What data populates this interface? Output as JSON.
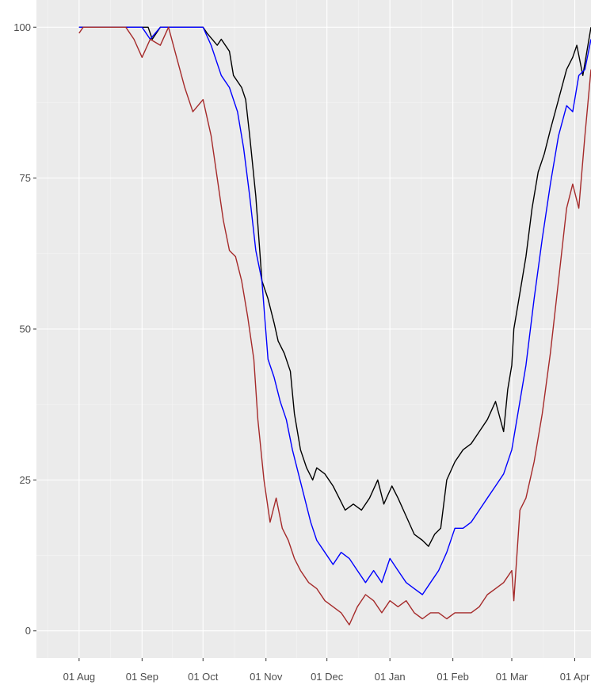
{
  "chart_data": {
    "type": "line",
    "title": "",
    "xlabel": "",
    "ylabel": "",
    "grid": true,
    "background_color": "#ebebeb",
    "grid_major_color": "#ffffff",
    "grid_minor_color": "#f5f5f5",
    "xlim": [
      "2019-07-11",
      "2020-04-09"
    ],
    "ylim": [
      -4.5,
      104.5
    ],
    "x_ticks": [
      {
        "date": "2019-08-01",
        "label": "01 Aug"
      },
      {
        "date": "2019-09-01",
        "label": "01 Sep"
      },
      {
        "date": "2019-10-01",
        "label": "01 Oct"
      },
      {
        "date": "2019-11-01",
        "label": "01 Nov"
      },
      {
        "date": "2019-12-01",
        "label": "01 Dec"
      },
      {
        "date": "2020-01-01",
        "label": "01 Jan"
      },
      {
        "date": "2020-02-01",
        "label": "01 Feb"
      },
      {
        "date": "2020-03-01",
        "label": "01 Mar"
      },
      {
        "date": "2020-04-01",
        "label": "01 Apr"
      }
    ],
    "y_ticks": [
      0,
      25,
      50,
      75,
      100
    ],
    "series": [
      {
        "color": "#000000",
        "x": [
          "2019-08-01",
          "2019-09-04",
          "2019-09-06",
          "2019-09-10",
          "2019-09-15",
          "2019-10-01",
          "2019-10-03",
          "2019-10-08",
          "2019-10-10",
          "2019-10-14",
          "2019-10-16",
          "2019-10-20",
          "2019-10-22",
          "2019-10-24",
          "2019-10-27",
          "2019-10-30",
          "2019-11-02",
          "2019-11-05",
          "2019-11-07",
          "2019-11-10",
          "2019-11-13",
          "2019-11-15",
          "2019-11-18",
          "2019-11-21",
          "2019-11-24",
          "2019-11-26",
          "2019-11-30",
          "2019-12-04",
          "2019-12-07",
          "2019-12-10",
          "2019-12-14",
          "2019-12-18",
          "2019-12-22",
          "2019-12-26",
          "2019-12-29",
          "2020-01-02",
          "2020-01-05",
          "2020-01-09",
          "2020-01-13",
          "2020-01-17",
          "2020-01-20",
          "2020-01-23",
          "2020-01-26",
          "2020-01-29",
          "2020-02-02",
          "2020-02-06",
          "2020-02-10",
          "2020-02-14",
          "2020-02-18",
          "2020-02-22",
          "2020-02-26",
          "2020-02-28",
          "2020-03-01",
          "2020-03-02",
          "2020-03-05",
          "2020-03-08",
          "2020-03-11",
          "2020-03-14",
          "2020-03-17",
          "2020-03-20",
          "2020-03-24",
          "2020-03-28",
          "2020-03-31",
          "2020-04-02",
          "2020-04-05",
          "2020-04-08",
          "2020-04-09"
        ],
        "y": [
          100,
          100,
          98,
          100,
          100,
          100,
          99,
          97,
          98,
          96,
          92,
          90,
          88,
          82,
          72,
          58,
          55,
          51,
          48,
          46,
          43,
          36,
          30,
          27,
          25,
          27,
          26,
          24,
          22,
          20,
          21,
          20,
          22,
          25,
          21,
          24,
          22,
          19,
          16,
          15,
          14,
          16,
          17,
          25,
          28,
          30,
          31,
          33,
          35,
          38,
          33,
          40,
          44,
          50,
          56,
          62,
          70,
          76,
          79,
          83,
          88,
          93,
          95,
          97,
          92,
          98,
          100
        ]
      },
      {
        "color": "#0000ff",
        "x": [
          "2019-08-01",
          "2019-09-01",
          "2019-09-05",
          "2019-09-10",
          "2019-09-15",
          "2019-10-01",
          "2019-10-05",
          "2019-10-10",
          "2019-10-14",
          "2019-10-18",
          "2019-10-21",
          "2019-10-24",
          "2019-10-27",
          "2019-10-30",
          "2019-11-02",
          "2019-11-05",
          "2019-11-08",
          "2019-11-11",
          "2019-11-14",
          "2019-11-17",
          "2019-11-20",
          "2019-11-23",
          "2019-11-26",
          "2019-11-30",
          "2019-12-04",
          "2019-12-08",
          "2019-12-12",
          "2019-12-16",
          "2019-12-20",
          "2019-12-24",
          "2019-12-28",
          "2020-01-01",
          "2020-01-05",
          "2020-01-09",
          "2020-01-13",
          "2020-01-17",
          "2020-01-21",
          "2020-01-25",
          "2020-01-29",
          "2020-02-02",
          "2020-02-06",
          "2020-02-10",
          "2020-02-14",
          "2020-02-18",
          "2020-02-22",
          "2020-02-26",
          "2020-03-01",
          "2020-03-04",
          "2020-03-08",
          "2020-03-12",
          "2020-03-16",
          "2020-03-20",
          "2020-03-24",
          "2020-03-28",
          "2020-03-31",
          "2020-04-03",
          "2020-04-06",
          "2020-04-09"
        ],
        "y": [
          100,
          100,
          98,
          100,
          100,
          100,
          97,
          92,
          90,
          86,
          80,
          72,
          63,
          58,
          45,
          42,
          38,
          35,
          30,
          26,
          22,
          18,
          15,
          13,
          11,
          13,
          12,
          10,
          8,
          10,
          8,
          12,
          10,
          8,
          7,
          6,
          8,
          10,
          13,
          17,
          17,
          18,
          20,
          22,
          24,
          26,
          30,
          36,
          44,
          55,
          65,
          74,
          82,
          87,
          86,
          92,
          93,
          98
        ]
      },
      {
        "color": "#a52a2a",
        "x": [
          "2019-08-01",
          "2019-08-03",
          "2019-08-10",
          "2019-08-18",
          "2019-08-24",
          "2019-08-28",
          "2019-09-01",
          "2019-09-05",
          "2019-09-10",
          "2019-09-14",
          "2019-09-18",
          "2019-09-22",
          "2019-09-26",
          "2019-10-01",
          "2019-10-05",
          "2019-10-08",
          "2019-10-11",
          "2019-10-14",
          "2019-10-17",
          "2019-10-20",
          "2019-10-23",
          "2019-10-26",
          "2019-10-28",
          "2019-10-31",
          "2019-11-03",
          "2019-11-06",
          "2019-11-09",
          "2019-11-12",
          "2019-11-15",
          "2019-11-18",
          "2019-11-22",
          "2019-11-26",
          "2019-11-30",
          "2019-12-04",
          "2019-12-08",
          "2019-12-12",
          "2019-12-16",
          "2019-12-20",
          "2019-12-24",
          "2019-12-28",
          "2020-01-01",
          "2020-01-05",
          "2020-01-09",
          "2020-01-13",
          "2020-01-17",
          "2020-01-21",
          "2020-01-25",
          "2020-01-29",
          "2020-02-02",
          "2020-02-06",
          "2020-02-10",
          "2020-02-14",
          "2020-02-18",
          "2020-02-22",
          "2020-02-26",
          "2020-03-01",
          "2020-03-02",
          "2020-03-05",
          "2020-03-08",
          "2020-03-12",
          "2020-03-16",
          "2020-03-20",
          "2020-03-24",
          "2020-03-28",
          "2020-03-31",
          "2020-04-03",
          "2020-04-06",
          "2020-04-09"
        ],
        "y": [
          99,
          100,
          100,
          100,
          100,
          98,
          95,
          98,
          97,
          100,
          95,
          90,
          86,
          88,
          82,
          75,
          68,
          63,
          62,
          58,
          52,
          45,
          35,
          25,
          18,
          22,
          17,
          15,
          12,
          10,
          8,
          7,
          5,
          4,
          3,
          1,
          4,
          6,
          5,
          3,
          5,
          4,
          5,
          3,
          2,
          3,
          3,
          2,
          3,
          3,
          3,
          4,
          6,
          7,
          8,
          10,
          5,
          20,
          22,
          28,
          36,
          46,
          58,
          70,
          74,
          70,
          82,
          93
        ]
      }
    ]
  }
}
